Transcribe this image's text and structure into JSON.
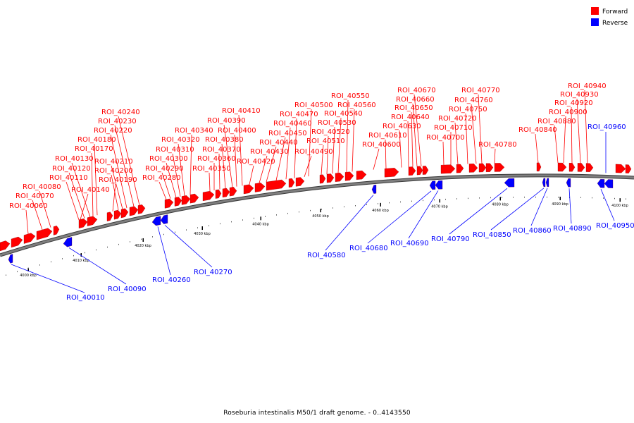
{
  "caption": "Roseburia intestinalis M50/1 draft genome. - 0..4143550",
  "legend": [
    {
      "label": "Forward",
      "color": "#ff0000"
    },
    {
      "label": "Reverse",
      "color": "#0000ff"
    }
  ],
  "colors": {
    "forward": "#ff0000",
    "reverse": "#0000ff",
    "backbone": "#7f7f7f"
  },
  "scale_ticks": [
    "4000 kbp",
    "4010 kbp",
    "4020 kbp",
    "4030 kbp",
    "4040 kbp",
    "4050 kbp",
    "4060 kbp",
    "4070 kbp",
    "4080 kbp",
    "4090 kbp",
    "4100 kbp"
  ],
  "forward_features": [
    "ROI_40060",
    "ROI_40070",
    "ROI_40080",
    "ROI_40110",
    "ROI_40120",
    "ROI_40130",
    "ROI_40140",
    "ROI_40170",
    "ROI_40180",
    "ROI_40190",
    "ROI_40200",
    "ROI_40210",
    "ROI_40220",
    "ROI_40230",
    "ROI_40240",
    "ROI_40280",
    "ROI_40290",
    "ROI_40300",
    "ROI_40310",
    "ROI_40320",
    "ROI_40340",
    "ROI_40350",
    "ROI_40360",
    "ROI_40370",
    "ROI_40380",
    "ROI_40390",
    "ROI_40400",
    "ROI_40410",
    "ROI_40420",
    "ROI_40430",
    "ROI_40440",
    "ROI_40450",
    "ROI_40460",
    "ROI_40470",
    "ROI_40490",
    "ROI_40500",
    "ROI_40510",
    "ROI_40520",
    "ROI_40530",
    "ROI_40540",
    "ROI_40550",
    "ROI_40560",
    "ROI_40600",
    "ROI_40610",
    "ROI_40630",
    "ROI_40640",
    "ROI_40650",
    "ROI_40660",
    "ROI_40670",
    "ROI_40700",
    "ROI_40710",
    "ROI_40720",
    "ROI_40750",
    "ROI_40760",
    "ROI_40770",
    "ROI_40780",
    "ROI_40840",
    "ROI_40880",
    "ROI_40900",
    "ROI_40920",
    "ROI_40930",
    "ROI_40940"
  ],
  "reverse_features": [
    "ROI_40010",
    "ROI_40090",
    "ROI_40260",
    "ROI_40270",
    "ROI_40580",
    "ROI_40680",
    "ROI_40690",
    "ROI_40790",
    "ROI_40850",
    "ROI_40860",
    "ROI_40890",
    "ROI_40950",
    "ROI_40960"
  ]
}
